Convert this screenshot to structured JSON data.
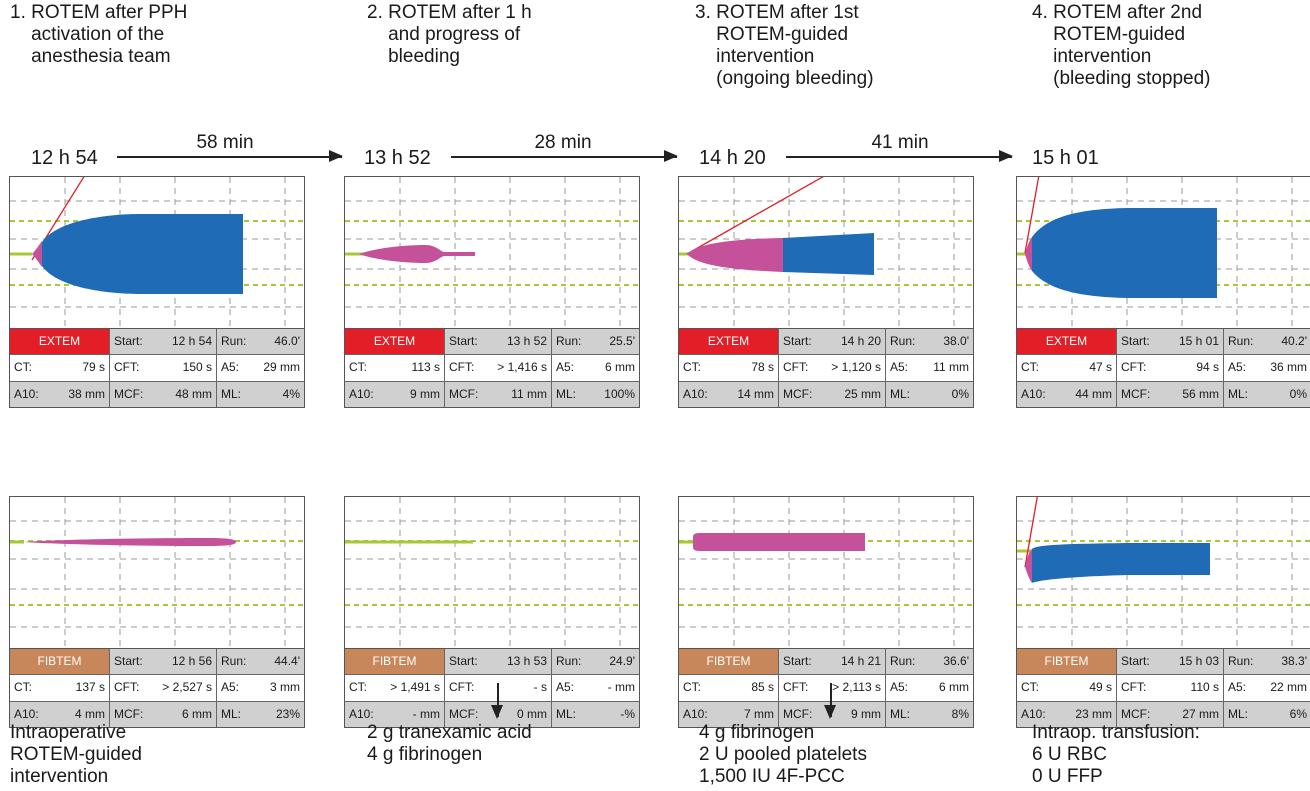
{
  "columns": [
    {
      "title": "1. ROTEM after PPH\n    activation of the\n    anesthesia team",
      "time": "12 h 54"
    },
    {
      "title": "2. ROTEM after 1 h\n    and progress of\n    bleeding",
      "time": "13 h 52"
    },
    {
      "title": "3. ROTEM after 1st\n    ROTEM-guided\n    intervention\n    (ongoing bleeding)",
      "time": "14 h 20"
    },
    {
      "title": "4. ROTEM after 2nd\n    ROTEM-guided\n    intervention\n    (bleeding stopped)",
      "time": "15 h 01"
    }
  ],
  "intervals": [
    "58 min",
    "28 min",
    "41 min"
  ],
  "labels": {
    "start": "Start:",
    "run": "Run:",
    "ct": "CT:",
    "cft": "CFT:",
    "a5": "A5:",
    "a10": "A10:",
    "mcf": "MCF:",
    "ml": "ML:"
  },
  "extem": [
    {
      "assay": "EXTEM",
      "start": "12 h 54",
      "run": "46.0'",
      "ct": "79 s",
      "cft": "150 s",
      "a5": "29 mm",
      "a10": "38 mm",
      "mcf": "48 mm",
      "ml": "4%"
    },
    {
      "assay": "EXTEM",
      "start": "13 h 52",
      "run": "25.5'",
      "ct": "113 s",
      "cft": "> 1,416 s",
      "a5": "6 mm",
      "a10": "9 mm",
      "mcf": "11 mm",
      "ml": "100%"
    },
    {
      "assay": "EXTEM",
      "start": "14 h 20",
      "run": "38.0'",
      "ct": "78 s",
      "cft": "> 1,120 s",
      "a5": "11 mm",
      "a10": "14 mm",
      "mcf": "25 mm",
      "ml": "0%"
    },
    {
      "assay": "EXTEM",
      "start": "15 h 01",
      "run": "40.2'",
      "ct": "47 s",
      "cft": "94 s",
      "a5": "36 mm",
      "a10": "44 mm",
      "mcf": "56 mm",
      "ml": "0%"
    }
  ],
  "fibtem": [
    {
      "assay": "FIBTEM",
      "start": "12 h 56",
      "run": "44.4'",
      "ct": "137 s",
      "cft": "> 2,527 s",
      "a5": "3 mm",
      "a10": "4 mm",
      "mcf": "6 mm",
      "ml": "23%"
    },
    {
      "assay": "FIBTEM",
      "start": "13 h 53",
      "run": "24.9'",
      "ct": "> 1,491 s",
      "cft": "- s",
      "a5": "- mm",
      "a10": "- mm",
      "mcf": "0 mm",
      "ml": "-%"
    },
    {
      "assay": "FIBTEM",
      "start": "14 h 21",
      "run": "36.6'",
      "ct": "85 s",
      "cft": "> 2,113 s",
      "a5": "6 mm",
      "a10": "7 mm",
      "mcf": "9 mm",
      "ml": "8%"
    },
    {
      "assay": "FIBTEM",
      "start": "15 h 03",
      "run": "38.3'",
      "ct": "49 s",
      "cft": "110 s",
      "a5": "22 mm",
      "a10": "23 mm",
      "mcf": "27 mm",
      "ml": "6%"
    }
  ],
  "notes": [
    [
      "Intraoperative",
      "ROTEM-guided",
      "intervention"
    ],
    [
      "2 g tranexamic acid",
      "4 g fibrinogen"
    ],
    [
      "4 g fibrinogen",
      "2 U pooled platelets",
      "1,500 IU 4F-PCC"
    ],
    [
      "Intraop. transfusion:",
      "6 U RBC",
      "0 U FFP"
    ]
  ],
  "colors": {
    "extem": "#e31e26",
    "fibtem": "#c8875a",
    "clot": "#1f6bb5",
    "clot_early": "#c5519b",
    "baseline": "#a6c93a",
    "tangent": "#e31e26",
    "grid_green": "#a6c93a"
  }
}
